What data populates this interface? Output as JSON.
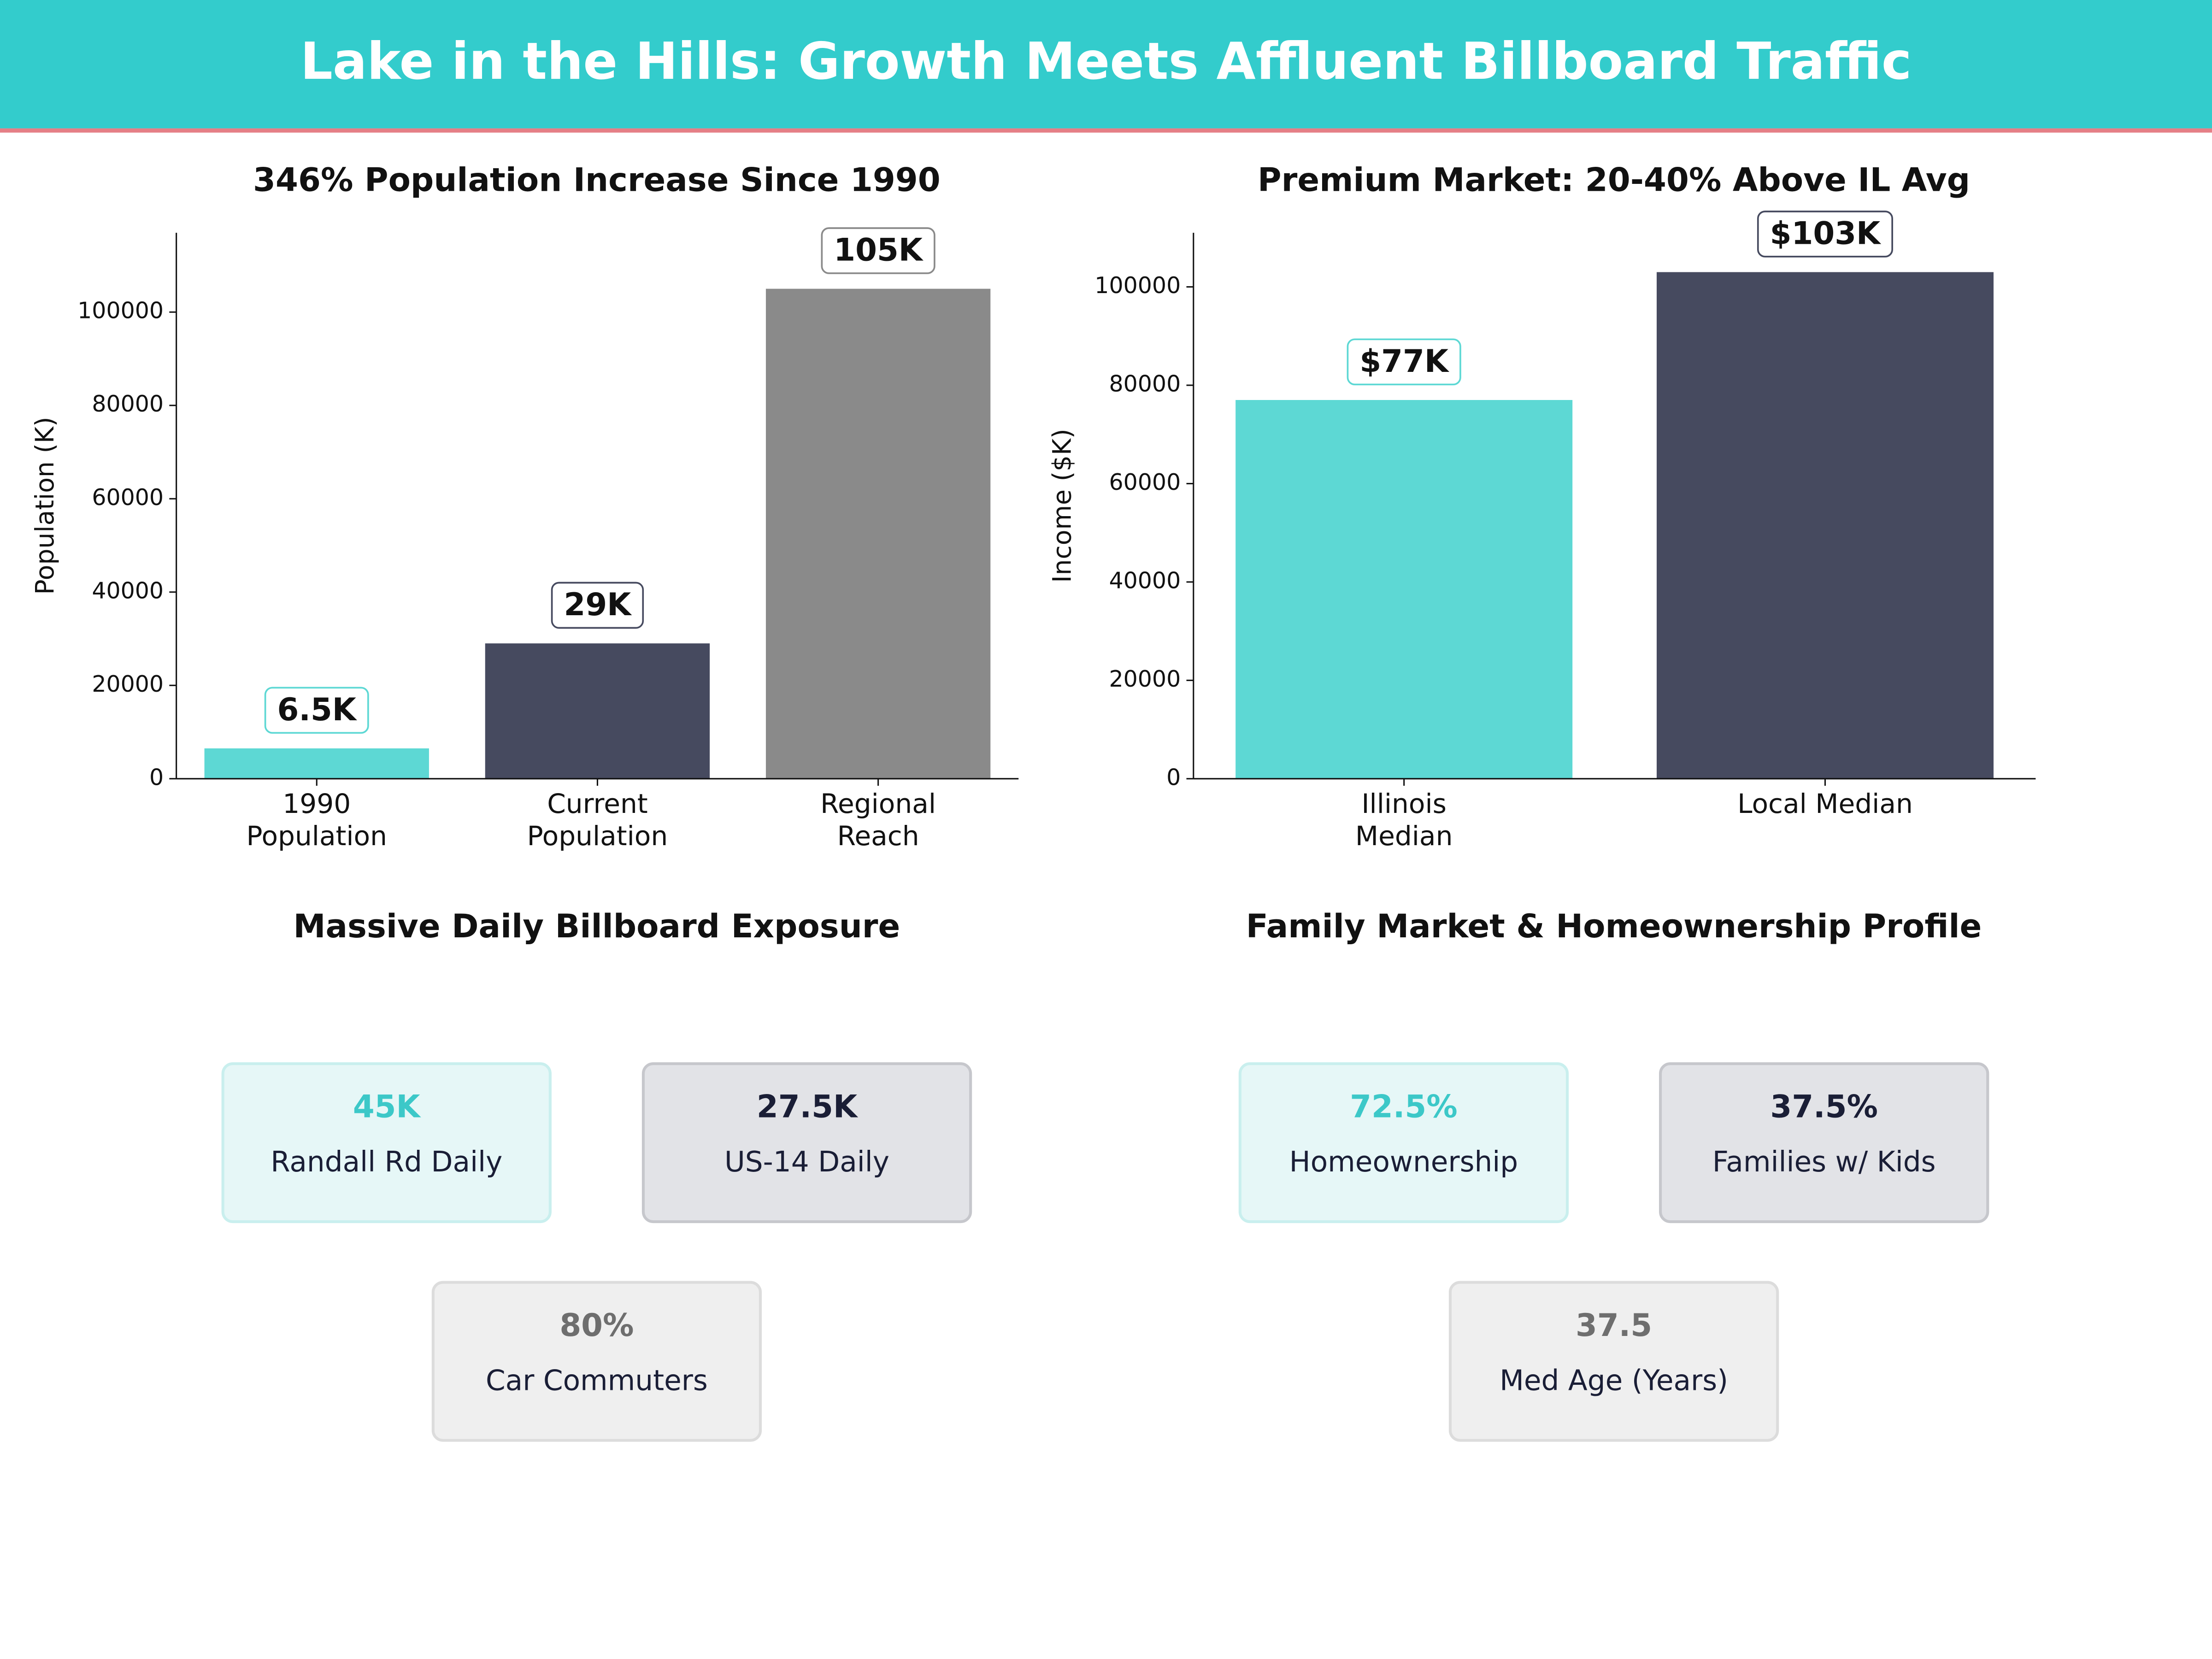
{
  "title": "Lake in the Hills: Growth Meets Affluent Billboard Traffic",
  "chart_data": [
    {
      "type": "bar",
      "title": "346% Population Increase Since 1990",
      "y_label": "Population (K)",
      "categories": [
        "1990\nPopulation",
        "Current\nPopulation",
        "Regional\nReach"
      ],
      "values": [
        6500,
        29000,
        105000
      ],
      "value_labels": [
        "6.5K",
        "29K",
        "105K"
      ],
      "colors": [
        "#5dd8d4",
        "#464a5f",
        "#8a8a8a"
      ],
      "ylim": [
        0,
        117000
      ],
      "yticks": [
        0,
        20000,
        40000,
        60000,
        80000,
        100000
      ],
      "grid": false
    },
    {
      "type": "bar",
      "title": "Premium Market: 20-40% Above IL Avg",
      "y_label": "Income ($K)",
      "categories": [
        "Illinois\nMedian",
        "Local Median"
      ],
      "values": [
        77000,
        103000
      ],
      "value_labels": [
        "$77K",
        "$103K"
      ],
      "colors": [
        "#5dd8d4",
        "#464a5f"
      ],
      "ylim": [
        0,
        111000
      ],
      "yticks": [
        0,
        20000,
        40000,
        60000,
        80000,
        100000
      ],
      "grid": false
    }
  ],
  "panels": [
    {
      "title": "Massive Daily Billboard Exposure",
      "cards": [
        {
          "value": "45K",
          "label": "Randall Rd Daily"
        },
        {
          "value": "27.5K",
          "label": "US-14 Daily"
        },
        {
          "value": "80%",
          "label": "Car Commuters"
        }
      ]
    },
    {
      "title": "Family Market & Homeownership Profile",
      "cards": [
        {
          "value": "72.5%",
          "label": "Homeownership"
        },
        {
          "value": "37.5%",
          "label": "Families w/ Kids"
        },
        {
          "value": "37.5",
          "label": "Med Age (Years)"
        }
      ]
    }
  ]
}
